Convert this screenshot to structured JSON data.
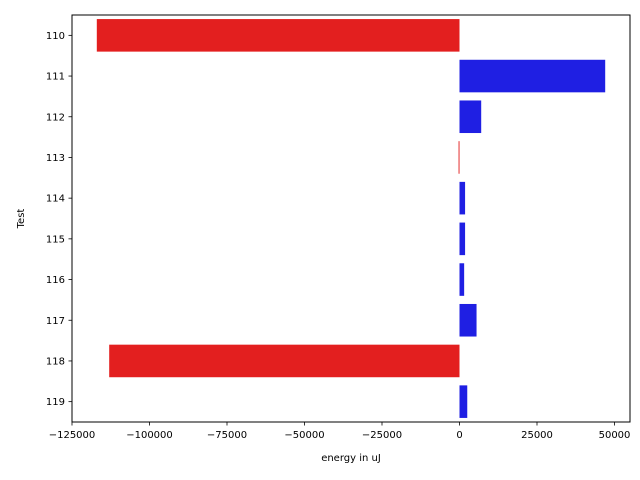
{
  "chart_data": {
    "type": "bar",
    "orientation": "horizontal",
    "categories": [
      "110",
      "111",
      "112",
      "113",
      "114",
      "115",
      "116",
      "117",
      "118",
      "119"
    ],
    "values": [
      -117000,
      47000,
      7000,
      -300,
      1800,
      1800,
      1500,
      5500,
      -113000,
      2500
    ],
    "colors": [
      "#e31f1f",
      "#1f1fe3",
      "#1f1fe3",
      "#e31f1f",
      "#1f1fe3",
      "#1f1fe3",
      "#1f1fe3",
      "#1f1fe3",
      "#e31f1f",
      "#1f1fe3"
    ],
    "title": "",
    "xlabel": "energy in uJ",
    "ylabel": "Test",
    "xlim": [
      -125000,
      55000
    ],
    "xticks": [
      -125000,
      -100000,
      -75000,
      -50000,
      -25000,
      0,
      25000,
      50000
    ],
    "xtick_labels": [
      "−125000",
      "−100000",
      "−75000",
      "−50000",
      "−25000",
      "0",
      "25000",
      "50000"
    ],
    "grid": false,
    "legend": "none"
  }
}
